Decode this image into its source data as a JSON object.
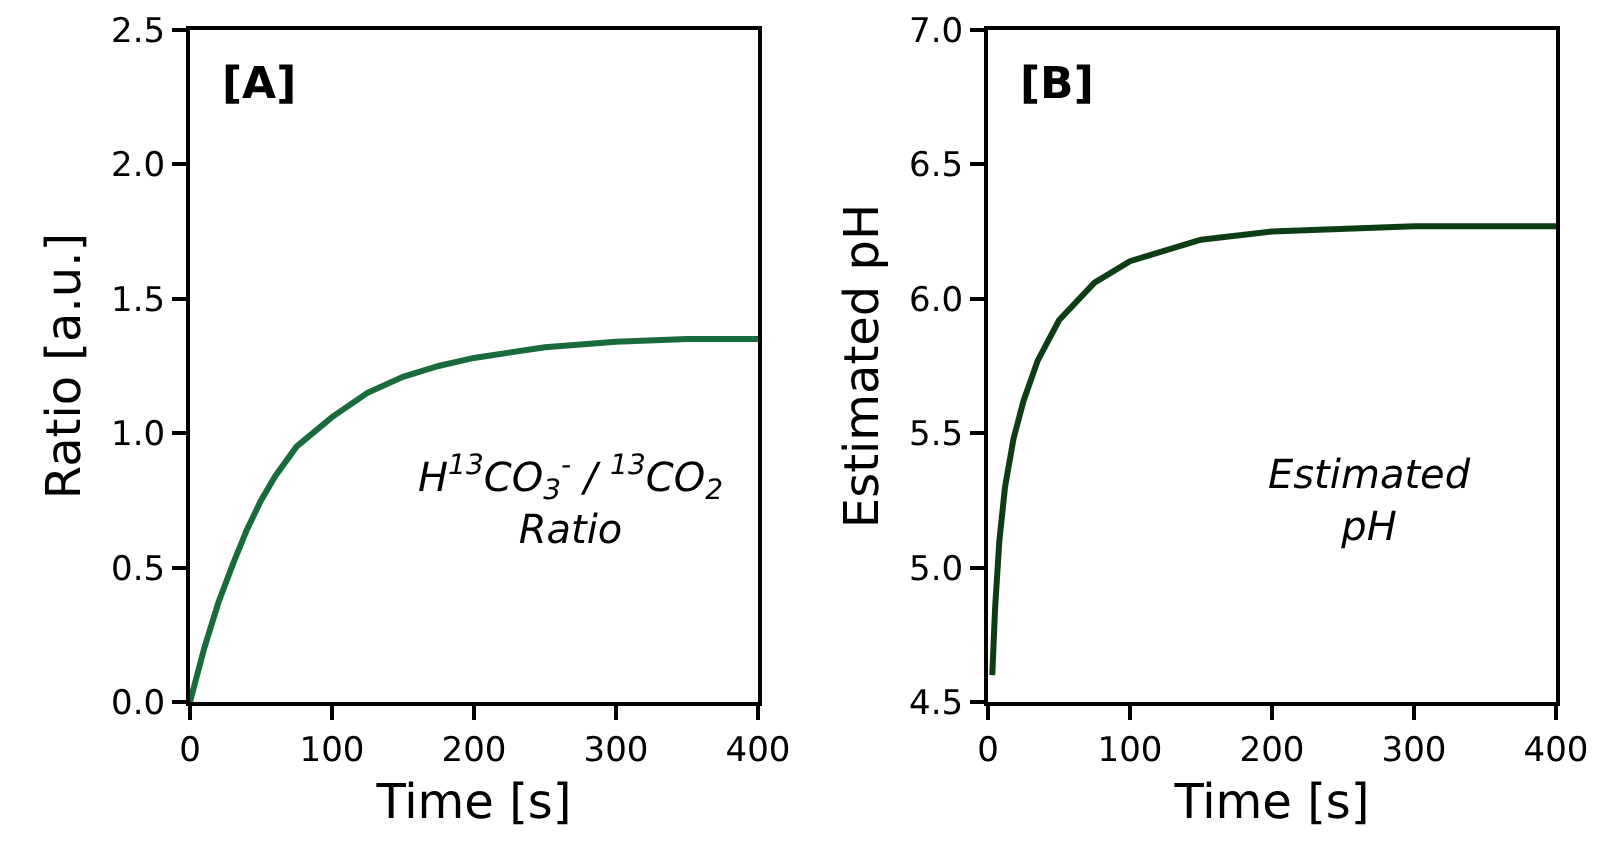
{
  "chart_data": [
    {
      "type": "line",
      "xlabel": "Time [s]",
      "ylabel": "Ratio [a.u.]",
      "annotations": [
        "[A]",
        "H$^{13}$CO$_{3}$$^{-}$ / $^{13}$CO$_{2}$\nRatio"
      ],
      "x": [
        0,
        10,
        20,
        30,
        40,
        50,
        60,
        75,
        100,
        125,
        150,
        175,
        200,
        250,
        300,
        350,
        400
      ],
      "series": [
        {
          "color": "#1a6b3c",
          "values": [
            0,
            0.2,
            0.37,
            0.51,
            0.64,
            0.75,
            0.84,
            0.95,
            1.06,
            1.15,
            1.21,
            1.25,
            1.28,
            1.32,
            1.34,
            1.35,
            1.35
          ]
        }
      ],
      "xlim": [
        0,
        400
      ],
      "xticks": [
        0,
        100,
        200,
        300,
        400
      ],
      "ylim": [
        0,
        2.5
      ],
      "yticks": [
        {
          "value": 0,
          "label": "0.0"
        },
        {
          "value": 0.5,
          "label": "0.5"
        },
        {
          "value": 1,
          "label": "1.0"
        },
        {
          "value": 1.5,
          "label": "1.5"
        },
        {
          "value": 2,
          "label": "2.0"
        },
        {
          "value": 2.5,
          "label": "2.5"
        }
      ],
      "grid": false,
      "marker": "none",
      "line_style": "solid"
    },
    {
      "type": "line",
      "xlabel": "Time [s]",
      "ylabel": "Estimated pH",
      "annotations": [
        "[B]",
        "Estimated\npH"
      ],
      "x": [
        3,
        5,
        8,
        12,
        18,
        25,
        35,
        50,
        75,
        100,
        150,
        200,
        300,
        400
      ],
      "series": [
        {
          "color": "#0d3d14",
          "values": [
            4.6,
            4.85,
            5.1,
            5.3,
            5.48,
            5.62,
            5.77,
            5.92,
            6.06,
            6.14,
            6.22,
            6.25,
            6.27,
            6.27
          ]
        }
      ],
      "xlim": [
        0,
        400
      ],
      "xticks": [
        0,
        100,
        200,
        300,
        400
      ],
      "ylim": [
        4.5,
        7
      ],
      "yticks": [
        4.5,
        {
          "value": 5,
          "label": "5.0"
        },
        5.5,
        {
          "value": 6,
          "label": "6.0"
        },
        6.5,
        {
          "value": 7,
          "label": "7.0"
        }
      ],
      "grid": false,
      "marker": "none",
      "line_style": "solid"
    }
  ]
}
